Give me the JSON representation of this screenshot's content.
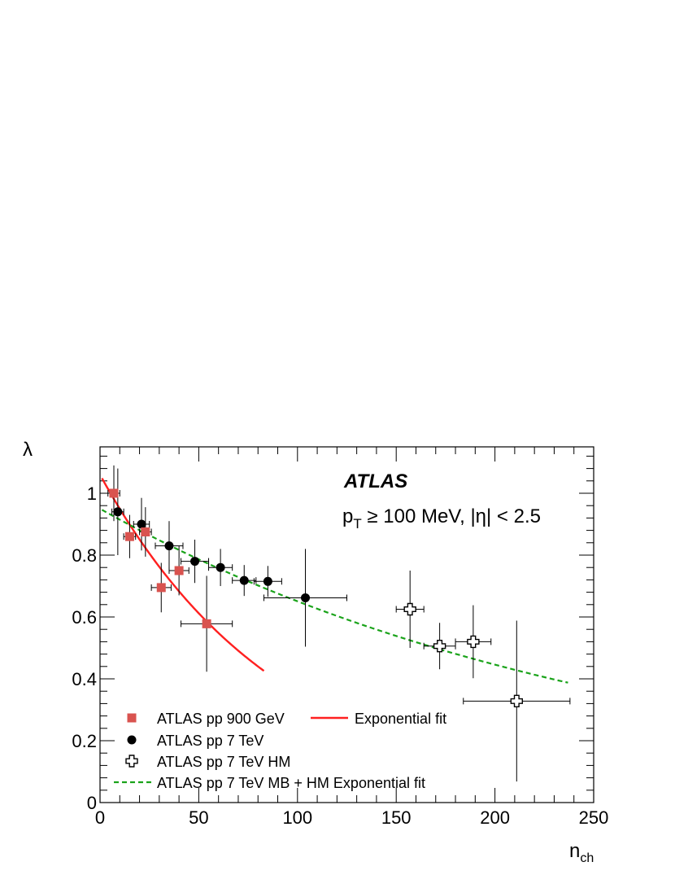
{
  "chart_data": {
    "type": "scatter",
    "xlabel": "n",
    "xlabel_sub": "ch",
    "ylabel": "λ",
    "xlim": [
      0,
      250
    ],
    "ylim": [
      0,
      1.15
    ],
    "x_ticks": [
      0,
      50,
      100,
      150,
      200,
      250
    ],
    "y_ticks": [
      0,
      0.2,
      0.4,
      0.6,
      0.8,
      1
    ],
    "x_tick_labels": [
      "0",
      "50",
      "100",
      "150",
      "200",
      "250"
    ],
    "y_tick_labels": [
      "0",
      "0.2",
      "0.4",
      "0.6",
      "0.8",
      "1"
    ],
    "experiment_label": "ATLAS",
    "cut_label": {
      "p": "p",
      "sub": "T",
      "rest": " ≥ 100 MeV, |η| < 2.5"
    },
    "legend_position": "bottom-left",
    "series": [
      {
        "name": "ATLAS pp 900 GeV",
        "marker": "square",
        "color": "#d9534f",
        "points": [
          {
            "x": 7,
            "y": 1.0,
            "xerr": 3,
            "yerr": 0.09
          },
          {
            "x": 15,
            "y": 0.86,
            "xerr": 3,
            "yerr": 0.07
          },
          {
            "x": 23,
            "y": 0.875,
            "xerr": 3,
            "yerr": 0.08
          },
          {
            "x": 31,
            "y": 0.695,
            "xerr": 5,
            "yerr": 0.08
          },
          {
            "x": 40,
            "y": 0.75,
            "xerr": 5,
            "yerr": 0.08
          },
          {
            "x": 54,
            "y": 0.578,
            "xerr": 13,
            "yerr": 0.155
          }
        ]
      },
      {
        "name": "ATLAS pp 7 TeV",
        "marker": "circle",
        "color": "#000000",
        "points": [
          {
            "x": 9,
            "y": 0.94,
            "xerr": 3,
            "yerr": 0.14
          },
          {
            "x": 21,
            "y": 0.9,
            "xerr": 4,
            "yerr": 0.085
          },
          {
            "x": 35,
            "y": 0.83,
            "xerr": 7,
            "yerr": 0.08
          },
          {
            "x": 48,
            "y": 0.78,
            "xerr": 7,
            "yerr": 0.07
          },
          {
            "x": 61,
            "y": 0.76,
            "xerr": 6,
            "yerr": 0.06
          },
          {
            "x": 73,
            "y": 0.718,
            "xerr": 6,
            "yerr": 0.05
          },
          {
            "x": 85,
            "y": 0.715,
            "xerr": 7,
            "yerr": 0.05
          },
          {
            "x": 104,
            "y": 0.662,
            "xerr": 21,
            "yerr": 0.158
          }
        ]
      },
      {
        "name": "ATLAS pp 7 TeV HM",
        "marker": "open-cross",
        "color": "#000000",
        "points": [
          {
            "x": 157,
            "y": 0.625,
            "xerr": 7,
            "yerr": 0.125
          },
          {
            "x": 172,
            "y": 0.506,
            "xerr": 8,
            "yerr": 0.075
          },
          {
            "x": 189,
            "y": 0.52,
            "xerr": 9,
            "yerr": 0.118
          },
          {
            "x": 211,
            "y": 0.328,
            "xerr": 27,
            "yerr": 0.26
          }
        ]
      }
    ],
    "fits": [
      {
        "name": "Exponential fit",
        "style": "solid",
        "color": "#ff2020",
        "x": [
          1,
          83
        ],
        "model": {
          "a": 1.06,
          "b": 0.01099
        }
      },
      {
        "name": "ATLAS pp 7 TeV MB + HM Exponential fit",
        "style": "dashed",
        "color": "#1aa31a",
        "x": [
          1,
          237
        ],
        "model": {
          "a": 0.95,
          "b": 0.003783
        }
      }
    ]
  }
}
